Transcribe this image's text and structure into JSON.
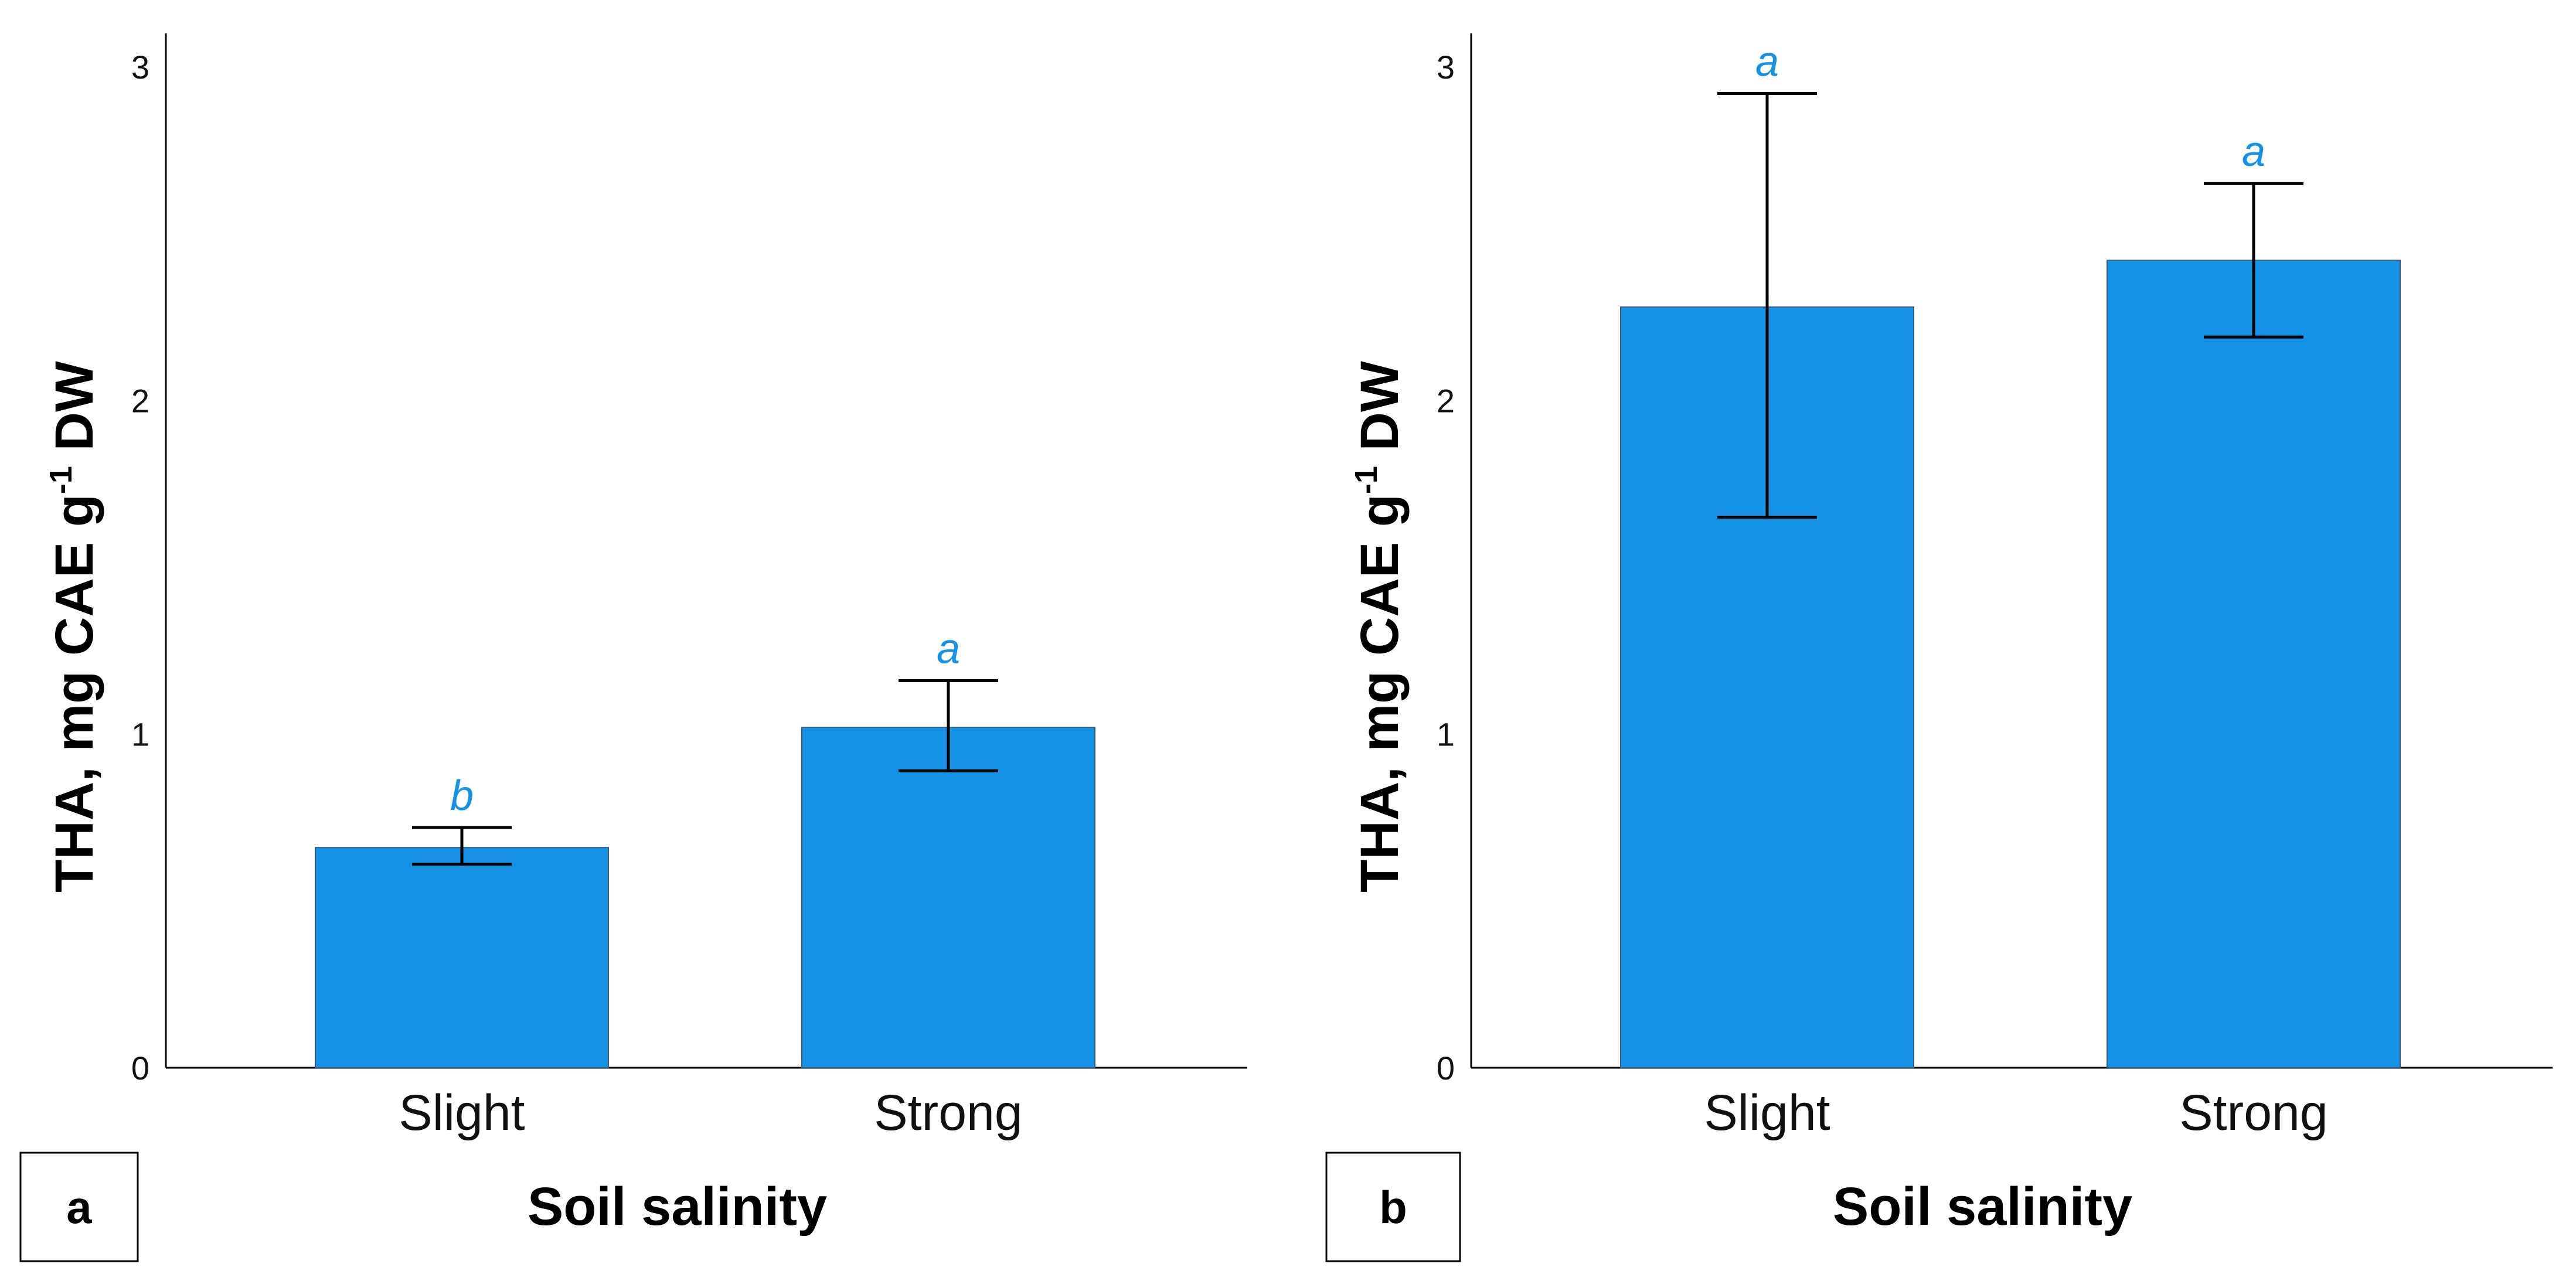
{
  "chart_data": [
    {
      "type": "bar",
      "panel_label": "a",
      "categories": [
        "Slight",
        "Strong"
      ],
      "values": [
        0.66,
        1.02
      ],
      "error_low": [
        0.61,
        0.89
      ],
      "error_high": [
        0.72,
        1.16
      ],
      "significance": [
        "b",
        "a"
      ],
      "xlabel": "Soil salinity",
      "ylabel": "THA, mg CAE g",
      "ylabel_superscript": "-1",
      "ylabel_suffix": " DW",
      "ylim": [
        0,
        3.1
      ],
      "yticks": [
        0,
        1,
        2,
        3
      ],
      "grid": false,
      "bar_color": "#1592E6",
      "letter_color": "#1592E6"
    },
    {
      "type": "bar",
      "panel_label": "b",
      "categories": [
        "Slight",
        "Strong"
      ],
      "values": [
        2.28,
        2.42
      ],
      "error_low": [
        1.65,
        2.19
      ],
      "error_high": [
        2.92,
        2.65
      ],
      "significance": [
        "a",
        "a"
      ],
      "xlabel": "Soil salinity",
      "ylabel": "THA, mg CAE g",
      "ylabel_superscript": "-1",
      "ylabel_suffix": " DW",
      "ylim": [
        0,
        3.1
      ],
      "yticks": [
        0,
        1,
        2,
        3
      ],
      "grid": false,
      "bar_color": "#1592E6",
      "letter_color": "#1592E6"
    }
  ]
}
